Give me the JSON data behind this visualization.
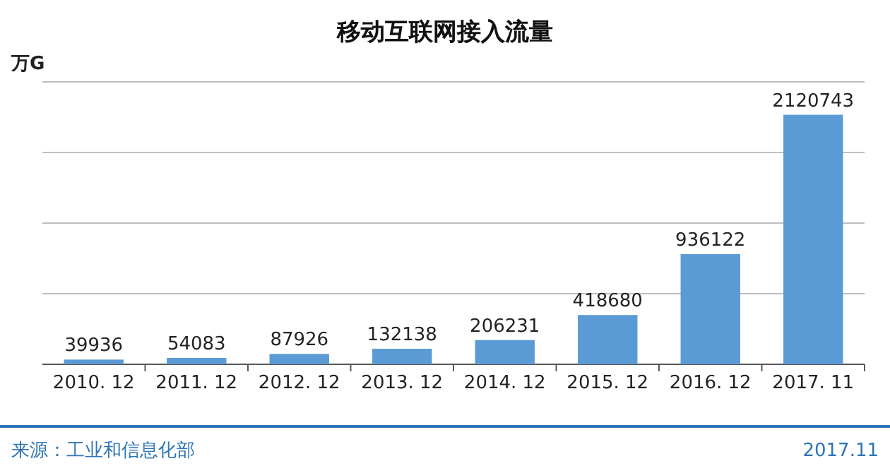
{
  "chart_data": {
    "type": "bar",
    "title": "移动互联网接入流量",
    "ylabel": "万G",
    "categories": [
      "2010. 12",
      "2011. 12",
      "2012. 12",
      "2013. 12",
      "2014. 12",
      "2015. 12",
      "2016. 12",
      "2017. 11"
    ],
    "values": [
      39936,
      54083,
      87926,
      132138,
      206231,
      418680,
      936122,
      2120743
    ],
    "color": "#5b9bd5",
    "ylim": [
      0,
      2400000
    ],
    "yticks": [
      {
        "value": 0,
        "label": null
      },
      {
        "value": 600000,
        "label": null
      },
      {
        "value": 1200000,
        "label": null
      },
      {
        "value": 1800000,
        "label": null
      },
      {
        "value": 2400000,
        "label": null
      }
    ],
    "grid": "y",
    "tick_labels": "x",
    "data_labels": true,
    "annotations": [
      "来源：工业和信息化部",
      "2017.11"
    ]
  }
}
